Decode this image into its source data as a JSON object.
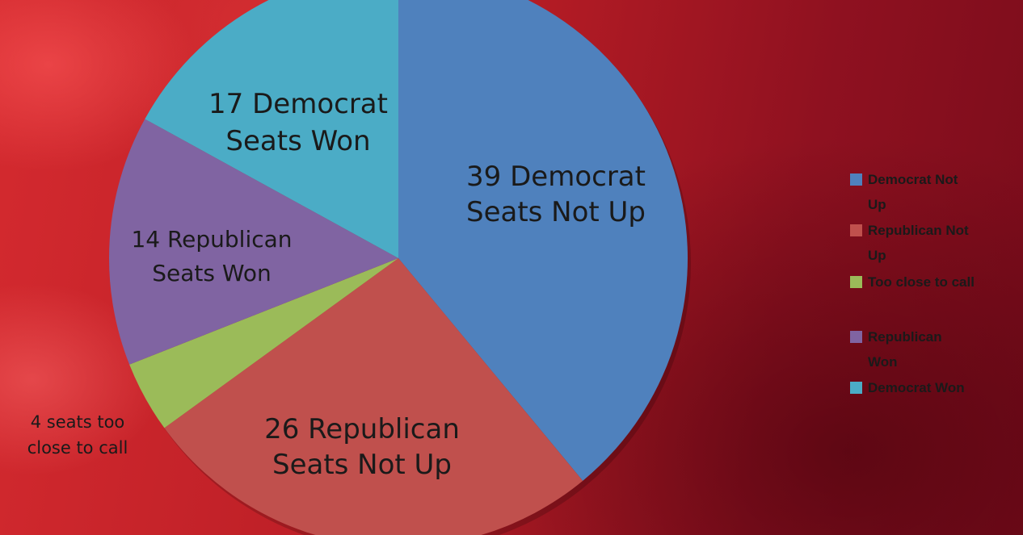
{
  "chart_data": {
    "type": "pie",
    "slices": [
      {
        "name": "Democrat Not Up",
        "value": 39,
        "label": [
          "39 Democrat",
          "Seats Not Up"
        ],
        "color": "#4f81bd"
      },
      {
        "name": "Republican Not Up",
        "value": 26,
        "label": [
          "26 Republican",
          "Seats Not Up"
        ],
        "color": "#c0504d"
      },
      {
        "name": "Too close to call",
        "value": 4,
        "label": [
          "4 seats too",
          "close to call"
        ],
        "color": "#9bbb59"
      },
      {
        "name": "Republican Won",
        "value": 14,
        "label": [
          "14 Republican",
          "Seats Won"
        ],
        "color": "#8064a2"
      },
      {
        "name": "Democrat Won",
        "value": 17,
        "label": [
          "17 Democrat",
          "Seats Won"
        ],
        "color": "#4bacc6"
      }
    ],
    "legend": {
      "placement": "right",
      "entries": [
        {
          "text": [
            "Democrat Not",
            "Up"
          ],
          "color": "#4f81bd"
        },
        {
          "text": [
            "Republican Not",
            "Up"
          ],
          "color": "#c0504d"
        },
        {
          "text": [
            "Too close to call"
          ],
          "color": "#9bbb59"
        },
        {
          "text": [
            "Republican",
            "Won"
          ],
          "color": "#8064a2"
        },
        {
          "text": [
            "Democrat Won"
          ],
          "color": "#4bacc6"
        }
      ]
    }
  }
}
